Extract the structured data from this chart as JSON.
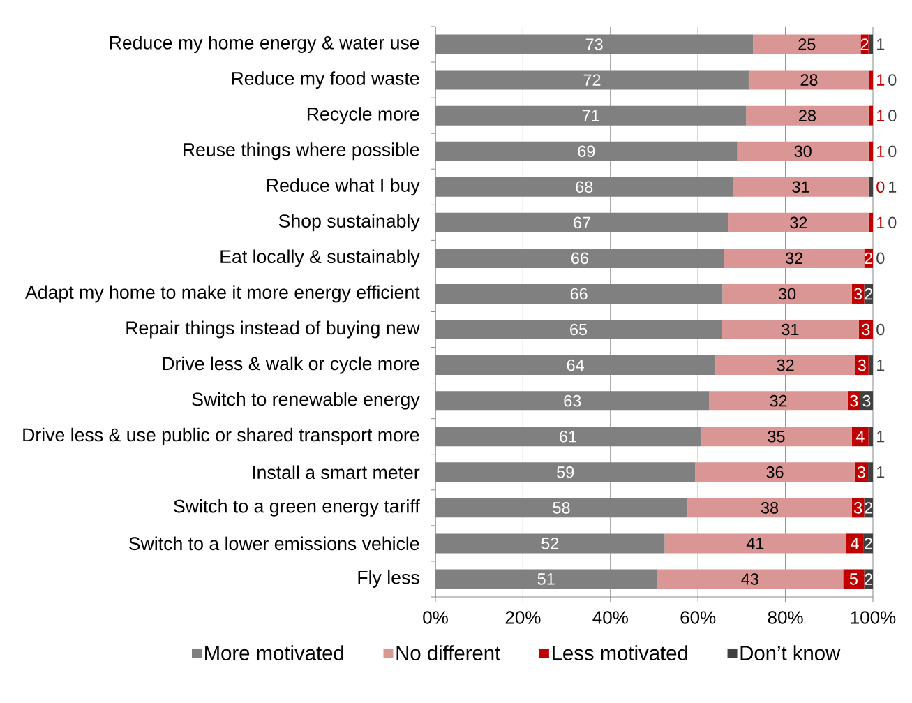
{
  "chart_data": {
    "type": "bar",
    "orientation": "horizontal",
    "stacked": true,
    "categories": [
      "Reduce my home energy & water use",
      "Reduce my food waste",
      "Recycle more",
      "Reuse things where possible",
      "Reduce what I buy",
      "Shop sustainably",
      "Eat locally & sustainably",
      "Adapt my home to make it more energy efficient",
      "Repair things instead of buying new",
      "Drive less & walk or cycle more",
      "Switch to renewable energy",
      "Drive less & use public or shared transport more",
      "Install a smart meter",
      "Switch to a green energy tariff",
      "Switch to a lower emissions vehicle",
      "Fly less"
    ],
    "series": [
      {
        "name": "More motivated",
        "color": "#808080",
        "values": [
          72.6,
          71.6,
          71,
          69,
          68,
          67,
          66,
          65.6,
          65.4,
          64,
          62.6,
          60.6,
          59.4,
          57.6,
          52.4,
          50.6
        ],
        "value_labels": [
          "73",
          "72",
          "71",
          "69",
          "68",
          "67",
          "66",
          "66",
          "65",
          "64",
          "63",
          "61",
          "59",
          "58",
          "52",
          "51"
        ]
      },
      {
        "name": "No different",
        "color": "#d99694",
        "values": [
          24.6,
          27.6,
          28,
          30,
          31,
          32,
          32,
          29.6,
          31.4,
          32,
          31.6,
          34.6,
          36.4,
          37.6,
          41.4,
          42.6
        ],
        "value_labels": [
          "25",
          "28",
          "28",
          "30",
          "31",
          "32",
          "32",
          "30",
          "31",
          "32",
          "32",
          "35",
          "36",
          "38",
          "41",
          "43"
        ]
      },
      {
        "name": "Less motivated",
        "color": "#c00000",
        "values": [
          1.8,
          0.8,
          1,
          1,
          0,
          1,
          2,
          2.8,
          3.2,
          3,
          2.9,
          3.8,
          3.1,
          2.8,
          4.1,
          4.8
        ],
        "value_labels": [
          "2",
          "1",
          "1",
          "1",
          "0",
          "1",
          "2",
          "3",
          "3",
          "3",
          "3",
          "4",
          "3",
          "3",
          "4",
          "5"
        ]
      },
      {
        "name": "Don’t know",
        "color": "#404040",
        "values": [
          1.0,
          0,
          0,
          0,
          1,
          0,
          0,
          2.0,
          0,
          1,
          2.9,
          1.0,
          1.1,
          2.0,
          2.1,
          2.0
        ],
        "value_labels": [
          "1",
          "0",
          "0",
          "0",
          "1",
          "0",
          "0",
          "2",
          "0",
          "1",
          "3",
          "1",
          "1",
          "2",
          "2",
          "2"
        ]
      }
    ],
    "xlim": [
      0,
      100
    ],
    "xticks": [
      {
        "value": 0,
        "label": "0%"
      },
      {
        "value": 20,
        "label": "20%"
      },
      {
        "value": 40,
        "label": "40%"
      },
      {
        "value": 60,
        "label": "60%"
      },
      {
        "value": 80,
        "label": "80%"
      },
      {
        "value": 100,
        "label": "100%"
      }
    ],
    "grid": "x",
    "legend": "bottom"
  }
}
